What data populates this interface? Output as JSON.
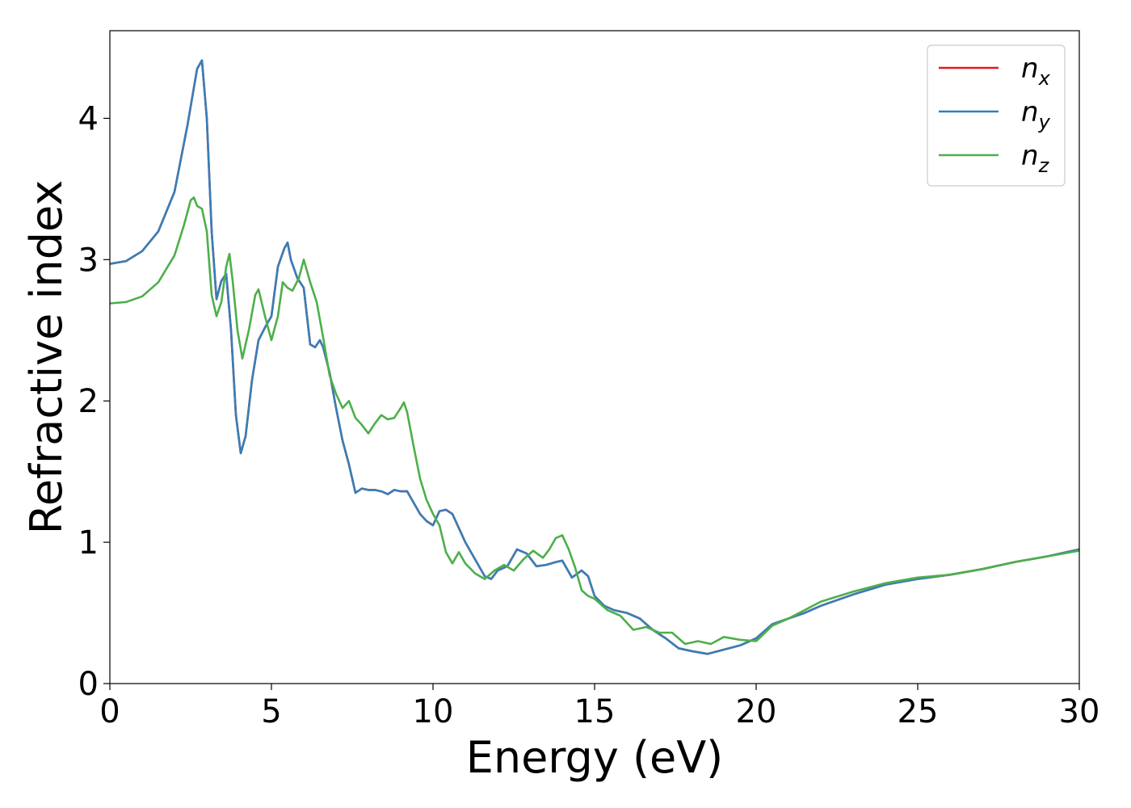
{
  "chart_data": {
    "type": "line",
    "xlabel": "Energy (eV)",
    "ylabel": "Refractive index",
    "xlim": [
      0,
      30
    ],
    "ylim": [
      0,
      4.62
    ],
    "xticks": [
      0,
      5,
      10,
      15,
      20,
      25,
      30
    ],
    "yticks": [
      0,
      1,
      2,
      3,
      4
    ],
    "grid": false,
    "legend_position": "top-right",
    "series": [
      {
        "name": "n",
        "subscript": "x",
        "color": "#e41a1c",
        "x": [
          0,
          0.5,
          1.0,
          1.5,
          2.0,
          2.4,
          2.7,
          2.85,
          3.0,
          3.15,
          3.3,
          3.45,
          3.6,
          3.75,
          3.9,
          4.05,
          4.2,
          4.4,
          4.6,
          4.8,
          5.0,
          5.2,
          5.4,
          5.5,
          5.6,
          5.8,
          6.0,
          6.2,
          6.35,
          6.5,
          6.6,
          6.8,
          7.0,
          7.2,
          7.4,
          7.6,
          7.8,
          8.0,
          8.2,
          8.4,
          8.6,
          8.8,
          9.0,
          9.2,
          9.4,
          9.6,
          9.8,
          10.0,
          10.2,
          10.4,
          10.6,
          10.8,
          11.0,
          11.3,
          11.6,
          11.8,
          12.0,
          12.3,
          12.6,
          12.9,
          13.2,
          13.5,
          13.8,
          14.0,
          14.3,
          14.6,
          14.8,
          15.0,
          15.3,
          15.6,
          16.0,
          16.4,
          16.8,
          17.2,
          17.6,
          18.0,
          18.5,
          19.0,
          19.5,
          20.0,
          20.5,
          21.0,
          21.5,
          22.0,
          23.0,
          24.0,
          25.0,
          26.0,
          27.0,
          28.0,
          29.0,
          30.0
        ],
        "values": [
          2.97,
          2.99,
          3.06,
          3.2,
          3.48,
          3.95,
          4.35,
          4.41,
          4.0,
          3.2,
          2.72,
          2.85,
          2.9,
          2.5,
          1.9,
          1.63,
          1.75,
          2.15,
          2.43,
          2.52,
          2.6,
          2.95,
          3.08,
          3.12,
          3.0,
          2.87,
          2.8,
          2.4,
          2.38,
          2.43,
          2.38,
          2.2,
          1.95,
          1.72,
          1.55,
          1.35,
          1.38,
          1.37,
          1.37,
          1.36,
          1.34,
          1.37,
          1.36,
          1.36,
          1.28,
          1.2,
          1.15,
          1.12,
          1.22,
          1.23,
          1.2,
          1.1,
          1.0,
          0.88,
          0.76,
          0.74,
          0.8,
          0.83,
          0.95,
          0.92,
          0.83,
          0.84,
          0.86,
          0.87,
          0.75,
          0.8,
          0.76,
          0.62,
          0.55,
          0.52,
          0.5,
          0.46,
          0.38,
          0.32,
          0.25,
          0.23,
          0.21,
          0.24,
          0.27,
          0.32,
          0.42,
          0.46,
          0.5,
          0.55,
          0.63,
          0.7,
          0.74,
          0.77,
          0.81,
          0.86,
          0.9,
          0.95
        ]
      },
      {
        "name": "n",
        "subscript": "y",
        "color": "#377eb8",
        "x": [
          0,
          0.5,
          1.0,
          1.5,
          2.0,
          2.4,
          2.7,
          2.85,
          3.0,
          3.15,
          3.3,
          3.45,
          3.6,
          3.75,
          3.9,
          4.05,
          4.2,
          4.4,
          4.6,
          4.8,
          5.0,
          5.2,
          5.4,
          5.5,
          5.6,
          5.8,
          6.0,
          6.2,
          6.35,
          6.5,
          6.6,
          6.8,
          7.0,
          7.2,
          7.4,
          7.6,
          7.8,
          8.0,
          8.2,
          8.4,
          8.6,
          8.8,
          9.0,
          9.2,
          9.4,
          9.6,
          9.8,
          10.0,
          10.2,
          10.4,
          10.6,
          10.8,
          11.0,
          11.3,
          11.6,
          11.8,
          12.0,
          12.3,
          12.6,
          12.9,
          13.2,
          13.5,
          13.8,
          14.0,
          14.3,
          14.6,
          14.8,
          15.0,
          15.3,
          15.6,
          16.0,
          16.4,
          16.8,
          17.2,
          17.6,
          18.0,
          18.5,
          19.0,
          19.5,
          20.0,
          20.5,
          21.0,
          21.5,
          22.0,
          23.0,
          24.0,
          25.0,
          26.0,
          27.0,
          28.0,
          29.0,
          30.0
        ],
        "values": [
          2.97,
          2.99,
          3.06,
          3.2,
          3.48,
          3.95,
          4.35,
          4.41,
          4.0,
          3.2,
          2.72,
          2.85,
          2.9,
          2.5,
          1.9,
          1.63,
          1.75,
          2.15,
          2.43,
          2.52,
          2.6,
          2.95,
          3.08,
          3.12,
          3.0,
          2.87,
          2.8,
          2.4,
          2.38,
          2.43,
          2.38,
          2.2,
          1.95,
          1.72,
          1.55,
          1.35,
          1.38,
          1.37,
          1.37,
          1.36,
          1.34,
          1.37,
          1.36,
          1.36,
          1.28,
          1.2,
          1.15,
          1.12,
          1.22,
          1.23,
          1.2,
          1.1,
          1.0,
          0.88,
          0.76,
          0.74,
          0.8,
          0.83,
          0.95,
          0.92,
          0.83,
          0.84,
          0.86,
          0.87,
          0.75,
          0.8,
          0.76,
          0.62,
          0.55,
          0.52,
          0.5,
          0.46,
          0.38,
          0.32,
          0.25,
          0.23,
          0.21,
          0.24,
          0.27,
          0.32,
          0.42,
          0.46,
          0.5,
          0.55,
          0.63,
          0.7,
          0.74,
          0.77,
          0.81,
          0.86,
          0.9,
          0.95
        ]
      },
      {
        "name": "n",
        "subscript": "z",
        "color": "#4daf4a",
        "x": [
          0,
          0.5,
          1.0,
          1.5,
          2.0,
          2.3,
          2.5,
          2.6,
          2.7,
          2.85,
          3.0,
          3.15,
          3.3,
          3.45,
          3.6,
          3.7,
          3.8,
          3.95,
          4.1,
          4.3,
          4.5,
          4.6,
          4.8,
          5.0,
          5.2,
          5.35,
          5.5,
          5.65,
          5.85,
          6.0,
          6.2,
          6.4,
          6.6,
          6.8,
          7.0,
          7.2,
          7.4,
          7.6,
          7.8,
          8.0,
          8.2,
          8.4,
          8.6,
          8.8,
          9.0,
          9.1,
          9.2,
          9.4,
          9.6,
          9.8,
          10.0,
          10.2,
          10.4,
          10.6,
          10.8,
          11.0,
          11.3,
          11.6,
          11.9,
          12.2,
          12.5,
          12.8,
          13.1,
          13.4,
          13.6,
          13.8,
          14.0,
          14.2,
          14.4,
          14.6,
          14.8,
          15.0,
          15.4,
          15.8,
          16.2,
          16.6,
          17.0,
          17.4,
          17.8,
          18.2,
          18.6,
          19.0,
          19.5,
          20.0,
          20.5,
          21.0,
          21.5,
          22.0,
          23.0,
          24.0,
          25.0,
          26.0,
          27.0,
          28.0,
          29.0,
          30.0
        ],
        "values": [
          2.69,
          2.7,
          2.74,
          2.84,
          3.03,
          3.25,
          3.42,
          3.44,
          3.38,
          3.36,
          3.2,
          2.75,
          2.6,
          2.7,
          2.95,
          3.04,
          2.85,
          2.5,
          2.3,
          2.5,
          2.75,
          2.79,
          2.6,
          2.43,
          2.6,
          2.84,
          2.8,
          2.78,
          2.87,
          3.0,
          2.84,
          2.7,
          2.45,
          2.18,
          2.05,
          1.95,
          2.0,
          1.88,
          1.83,
          1.77,
          1.84,
          1.9,
          1.87,
          1.88,
          1.95,
          1.99,
          1.92,
          1.68,
          1.45,
          1.3,
          1.2,
          1.12,
          0.93,
          0.85,
          0.93,
          0.85,
          0.78,
          0.74,
          0.8,
          0.84,
          0.8,
          0.88,
          0.94,
          0.89,
          0.95,
          1.03,
          1.05,
          0.95,
          0.82,
          0.66,
          0.62,
          0.6,
          0.52,
          0.48,
          0.38,
          0.4,
          0.36,
          0.36,
          0.28,
          0.3,
          0.28,
          0.33,
          0.31,
          0.3,
          0.41,
          0.46,
          0.52,
          0.58,
          0.65,
          0.71,
          0.75,
          0.77,
          0.81,
          0.86,
          0.9,
          0.94
        ]
      }
    ]
  }
}
